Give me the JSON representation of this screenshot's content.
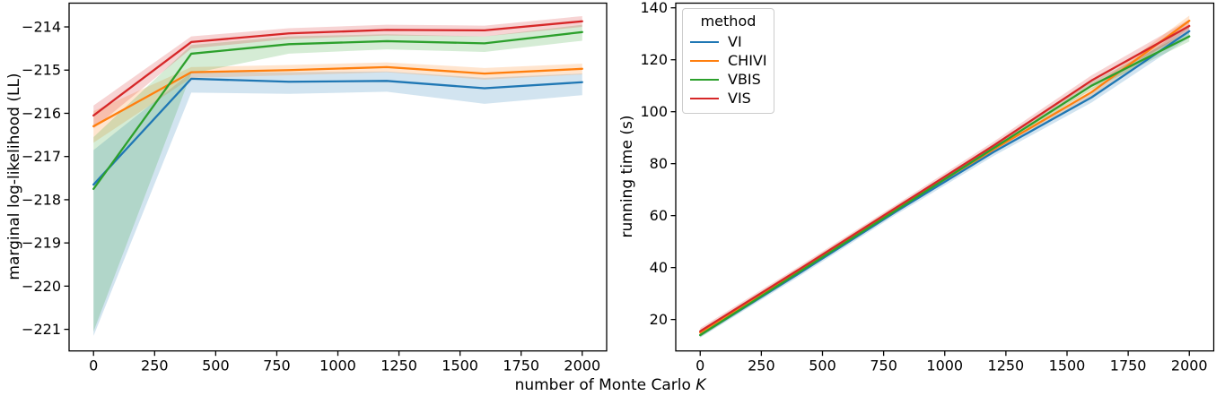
{
  "figure": {
    "background": "#ffffff"
  },
  "xlabel": {
    "text": "number of Monte Carlo ",
    "k": "K"
  },
  "axis_color": "#000000",
  "chart_data": [
    {
      "type": "line",
      "panel": "left",
      "title": "",
      "xlabel": "number of Monte Carlo K",
      "ylabel": "marginal log-likelihood (LL)",
      "xlim": [
        -100,
        2100
      ],
      "ylim": [
        -221.5,
        -213.45
      ],
      "grid": false,
      "xticks": [
        0,
        250,
        500,
        750,
        1000,
        1250,
        1500,
        1750,
        2000
      ],
      "xtick_labels": [
        "0",
        "250",
        "500",
        "750",
        "1000",
        "1250",
        "1500",
        "1750",
        "2000"
      ],
      "yticks": [
        -214,
        -215,
        -216,
        -217,
        -218,
        -219,
        -220,
        -221
      ],
      "ytick_labels": [
        "−214",
        "−215",
        "−216",
        "−217",
        "−218",
        "−219",
        "−220",
        "−221"
      ],
      "x": [
        0,
        400,
        800,
        1200,
        1600,
        2000
      ],
      "series": [
        {
          "name": "VI",
          "color": "#1f77b4",
          "values": [
            -217.65,
            -215.2,
            -215.27,
            -215.25,
            -215.42,
            -215.28
          ],
          "band_lo": [
            -221.15,
            -215.52,
            -215.55,
            -215.5,
            -215.78,
            -215.58
          ],
          "band_hi": [
            -216.85,
            -215.05,
            -215.05,
            -215.03,
            -215.18,
            -215.08
          ]
        },
        {
          "name": "CHIVI",
          "color": "#ff7f0e",
          "values": [
            -216.3,
            -215.05,
            -215.0,
            -214.93,
            -215.08,
            -214.97
          ],
          "band_lo": [
            -216.68,
            -215.18,
            -215.12,
            -215.05,
            -215.22,
            -215.1
          ],
          "band_hi": [
            -215.95,
            -214.93,
            -214.88,
            -214.82,
            -214.95,
            -214.85
          ]
        },
        {
          "name": "VBIS",
          "color": "#2ca02c",
          "values": [
            -217.75,
            -214.62,
            -214.4,
            -214.33,
            -214.38,
            -214.12
          ],
          "band_lo": [
            -221.05,
            -215.08,
            -214.62,
            -214.52,
            -214.58,
            -214.32
          ],
          "band_hi": [
            -216.55,
            -214.42,
            -214.22,
            -214.17,
            -214.22,
            -213.95
          ]
        },
        {
          "name": "VIS",
          "color": "#d62728",
          "values": [
            -216.05,
            -214.35,
            -214.15,
            -214.07,
            -214.08,
            -213.87
          ],
          "band_lo": [
            -216.35,
            -214.5,
            -214.28,
            -214.2,
            -214.22,
            -214.0
          ],
          "band_hi": [
            -215.82,
            -214.22,
            -214.03,
            -213.95,
            -213.97,
            -213.75
          ]
        }
      ]
    },
    {
      "type": "line",
      "panel": "right",
      "title": "",
      "xlabel": "number of Monte Carlo K",
      "ylabel": "running time (s)",
      "xlim": [
        -100,
        2100
      ],
      "ylim": [
        7.9,
        141.8
      ],
      "grid": false,
      "xticks": [
        0,
        250,
        500,
        750,
        1000,
        1250,
        1500,
        1750,
        2000
      ],
      "xtick_labels": [
        "0",
        "250",
        "500",
        "750",
        "1000",
        "1250",
        "1500",
        "1750",
        "2000"
      ],
      "yticks": [
        20,
        40,
        60,
        80,
        100,
        120,
        140
      ],
      "ytick_labels": [
        "20",
        "40",
        "60",
        "80",
        "100",
        "120",
        "140"
      ],
      "x": [
        0,
        400,
        800,
        1200,
        1600,
        2000
      ],
      "legend": {
        "title": "method",
        "position": "upper left",
        "items": [
          "VI",
          "CHIVI",
          "VBIS",
          "VIS"
        ]
      },
      "series": [
        {
          "name": "VI",
          "color": "#1f77b4",
          "values": [
            14,
            37.5,
            61.5,
            84.5,
            105.5,
            131
          ],
          "band_lo": [
            13,
            36.3,
            60.3,
            83,
            103.5,
            128.5
          ],
          "band_hi": [
            15,
            38.7,
            62.7,
            86,
            107.5,
            133.5
          ]
        },
        {
          "name": "CHIVI",
          "color": "#ff7f0e",
          "values": [
            15,
            38.5,
            62.5,
            85.5,
            107.5,
            135
          ],
          "band_lo": [
            14,
            37.3,
            61.3,
            84.3,
            106,
            132
          ],
          "band_hi": [
            16,
            39.7,
            63.7,
            86.7,
            109,
            137
          ]
        },
        {
          "name": "VBIS",
          "color": "#2ca02c",
          "values": [
            14,
            38,
            62,
            86,
            110,
            129
          ],
          "band_lo": [
            13.2,
            37,
            61,
            85,
            108.5,
            127
          ],
          "band_hi": [
            14.8,
            39,
            63,
            87,
            111.5,
            131
          ]
        },
        {
          "name": "VIS",
          "color": "#d62728",
          "values": [
            15.5,
            39,
            63,
            87,
            112,
            133
          ],
          "band_lo": [
            14.3,
            37.8,
            61.8,
            85.5,
            110,
            130.5
          ],
          "band_hi": [
            16.7,
            40.2,
            64.2,
            88.5,
            114,
            135.5
          ]
        }
      ]
    }
  ]
}
